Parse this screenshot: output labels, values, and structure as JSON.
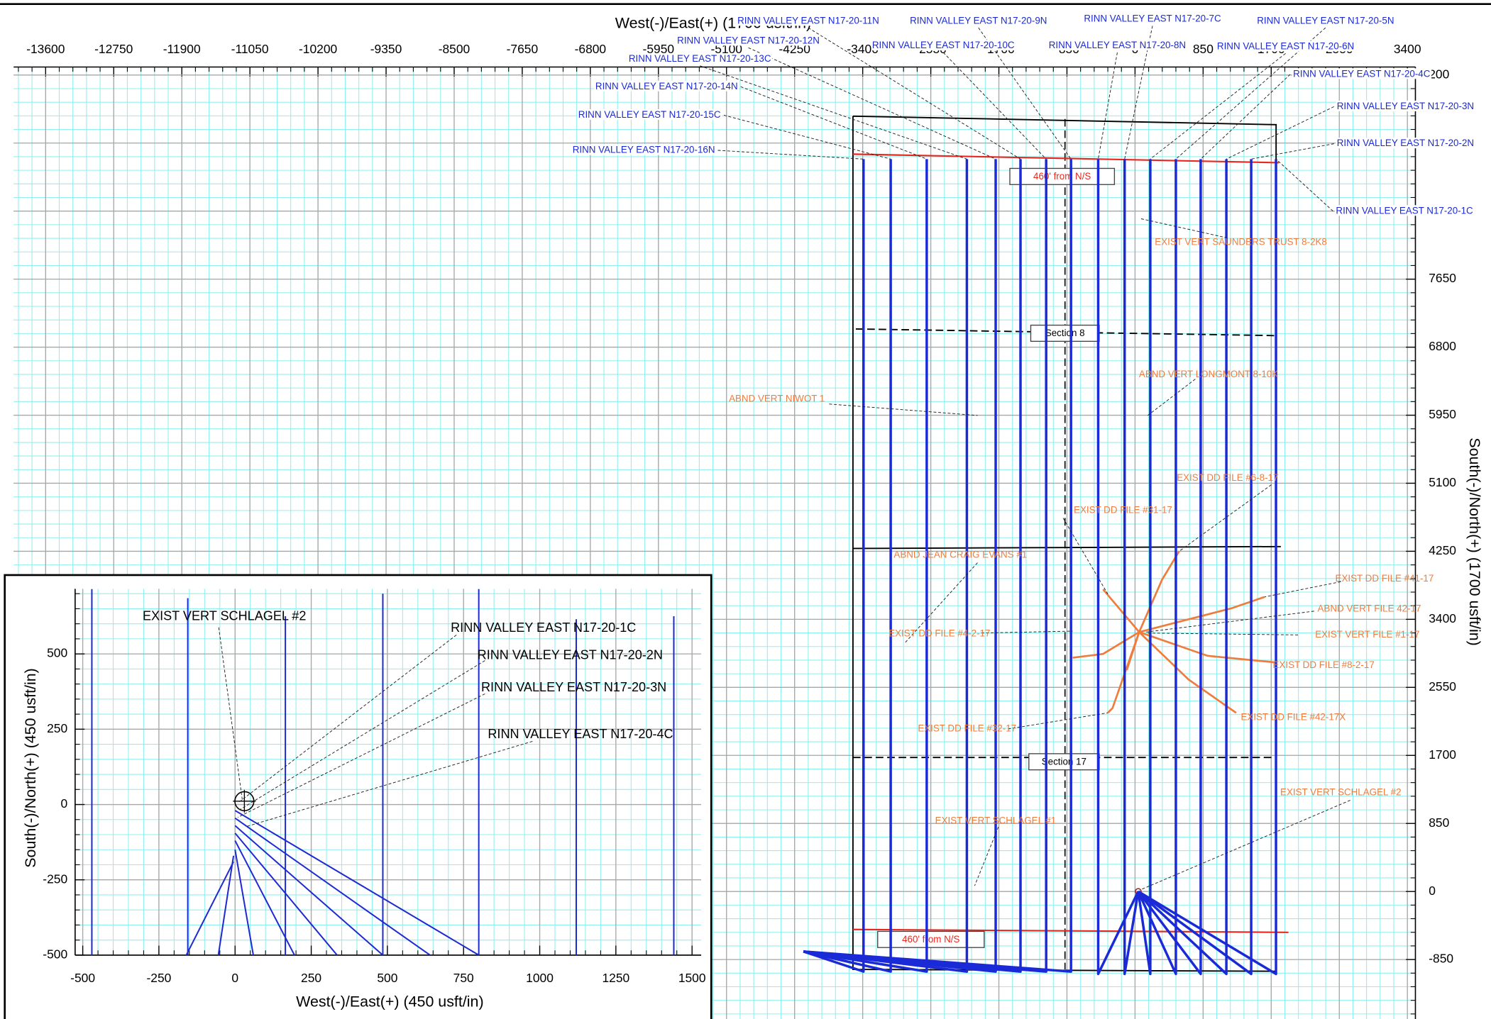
{
  "chart_data": [
    {
      "type": "line",
      "x_label": "West(-)/East(+) (1700 usft/in)",
      "y_label": "South(-)/North(+) (1700 usft/in)",
      "xlim": [
        -14000,
        3500
      ],
      "ylim": [
        -1600,
        10300
      ],
      "xticks": [
        -13600,
        -12750,
        -11900,
        -11050,
        -10200,
        -9350,
        -8500,
        -7650,
        -6800,
        -5950,
        -5100,
        -4250,
        -3400,
        -2550,
        -1700,
        -850,
        0,
        850,
        1700,
        2550,
        3400
      ],
      "yticks": [
        -850,
        0,
        850,
        1700,
        2550,
        3400,
        4250,
        5100,
        5950,
        6800,
        7650,
        8500,
        9350,
        {
          "value": 10200,
          "label": "200"
        }
      ],
      "grid": true,
      "color": "#1a2ad6",
      "offset_color": "#f07c3c",
      "series": [
        {
          "name": "RINN VALLEY EAST N17-20-1C",
          "x": [
            40,
            1760,
            1760
          ],
          "values": [
            0,
            -1030,
            9150
          ]
        },
        {
          "name": "RINN VALLEY EAST N17-20-2N",
          "x": [
            40,
            1450,
            1450
          ],
          "values": [
            0,
            -1030,
            9150
          ]
        },
        {
          "name": "RINN VALLEY EAST N17-20-3N",
          "x": [
            40,
            1140,
            1140
          ],
          "values": [
            0,
            -1030,
            9150
          ]
        },
        {
          "name": "RINN VALLEY EAST N17-20-4C",
          "x": [
            40,
            820,
            820
          ],
          "values": [
            0,
            -1030,
            9150
          ]
        },
        {
          "name": "RINN VALLEY EAST N17-20-5N",
          "x": [
            40,
            510,
            510
          ],
          "values": [
            0,
            -1030,
            9150
          ]
        },
        {
          "name": "RINN VALLEY EAST N17-20-6N",
          "x": [
            40,
            190,
            190
          ],
          "values": [
            0,
            -1030,
            9150
          ]
        },
        {
          "name": "RINN VALLEY EAST N17-20-7C",
          "x": [
            40,
            -130,
            -130
          ],
          "values": [
            0,
            -1030,
            9150
          ]
        },
        {
          "name": "RINN VALLEY EAST N17-20-8N",
          "x": [
            40,
            -460,
            -460
          ],
          "values": [
            0,
            -1030,
            9150
          ]
        },
        {
          "name": "RINN VALLEY EAST N17-20-9N",
          "x": [
            -4140,
            -800,
            -800
          ],
          "values": [
            -750,
            -1000,
            9150
          ]
        },
        {
          "name": "RINN VALLEY EAST N17-20-10C",
          "x": [
            -4140,
            -1110,
            -1110
          ],
          "values": [
            -750,
            -1000,
            9150
          ]
        },
        {
          "name": "RINN VALLEY EAST N17-20-11N",
          "x": [
            -4140,
            -1430,
            -1430
          ],
          "values": [
            -750,
            -1000,
            9150
          ]
        },
        {
          "name": "RINN VALLEY EAST N17-20-12N",
          "x": [
            -4140,
            -1740,
            -1740
          ],
          "values": [
            -750,
            -1000,
            9150
          ]
        },
        {
          "name": "RINN VALLEY EAST N17-20-13C",
          "x": [
            -4140,
            -2100,
            -2100
          ],
          "values": [
            -750,
            -1000,
            9150
          ]
        },
        {
          "name": "RINN VALLEY EAST N17-20-14N",
          "x": [
            -4140,
            -2600,
            -2600
          ],
          "values": [
            -750,
            -1000,
            9150
          ]
        },
        {
          "name": "RINN VALLEY EAST N17-20-15C",
          "x": [
            -4140,
            -3050,
            -3050
          ],
          "values": [
            -750,
            -1000,
            9150
          ]
        },
        {
          "name": "RINN VALLEY EAST N17-20-16N",
          "x": [
            -4140,
            -3390,
            -3390
          ],
          "values": [
            -750,
            -1000,
            9150
          ]
        }
      ],
      "section_labels": [
        "460' from N/S",
        "Section 8",
        "Section 17",
        "460' from N/S"
      ],
      "offset_wells": [
        "EXIST VERT SAUNDERS TRUST 8-2K8",
        "ABND VERT LONGMONT 8-10K",
        "ABND VERT NIWOT 1",
        "EXIST DD FILE #6-8-17",
        "EXIST DD FILE #31-17",
        "ABND JEAN CRAIG EVANS #1",
        "EXIST DD FILE #41-17",
        "ABND VERT FILE 42-17",
        "EXIST VERT FILE #1-17",
        "EXIST DD FILE #4-2-17",
        "EXIST DD FILE #8-2-17",
        "EXIST DD FILE #42-17X",
        "EXIST DD FILE #32-17",
        "EXIST VERT SCHLAGEL #2",
        "EXIST VERT SCHLAGEL #1"
      ]
    },
    {
      "type": "line",
      "x_label": "West(-)/East(+) (450 usft/in)",
      "y_label": "South(-)/North(+) (450 usft/in)",
      "xlim": [
        -525,
        1530
      ],
      "ylim": [
        -500,
        716
      ],
      "xticks": [
        -500,
        -250,
        0,
        250,
        500,
        750,
        1000,
        1250,
        1500
      ],
      "yticks": [
        -500,
        -250,
        0,
        250,
        500
      ],
      "grid": true,
      "color": "#1d2bd0",
      "series": [
        {
          "x": [
            -470,
            -470
          ],
          "values": [
            -500,
            715
          ]
        },
        {
          "x": [
            -155,
            -155
          ],
          "values": [
            -500,
            685
          ]
        },
        {
          "x": [
            165,
            165
          ],
          "values": [
            -500,
            625
          ]
        },
        {
          "x": [
            485,
            485
          ],
          "values": [
            -500,
            700
          ]
        },
        {
          "x": [
            800,
            800
          ],
          "values": [
            -500,
            715
          ]
        },
        {
          "x": [
            1120,
            1120
          ],
          "values": [
            -500,
            615
          ]
        },
        {
          "x": [
            1440,
            1440
          ],
          "values": [
            -500,
            625
          ]
        },
        {
          "x": [
            0,
            800
          ],
          "values": [
            -20,
            -500
          ]
        },
        {
          "x": [
            0,
            640
          ],
          "values": [
            -45,
            -500
          ]
        },
        {
          "x": [
            0,
            485
          ],
          "values": [
            -70,
            -500
          ]
        },
        {
          "x": [
            0,
            335
          ],
          "values": [
            -95,
            -500
          ]
        },
        {
          "x": [
            0,
            195
          ],
          "values": [
            -120,
            -500
          ]
        },
        {
          "x": [
            0,
            60
          ],
          "values": [
            -150,
            -500
          ]
        },
        {
          "x": [
            -5,
            -55
          ],
          "values": [
            -170,
            -500
          ]
        },
        {
          "x": [
            -5,
            -160
          ],
          "values": [
            -190,
            -500
          ]
        }
      ],
      "annotations": [
        "EXIST VERT SCHLAGEL #2",
        "RINN VALLEY EAST N17-20-1C",
        "RINN VALLEY EAST N17-20-2N",
        "RINN VALLEY EAST N17-20-3N",
        "RINN VALLEY EAST N17-20-4C"
      ]
    }
  ]
}
